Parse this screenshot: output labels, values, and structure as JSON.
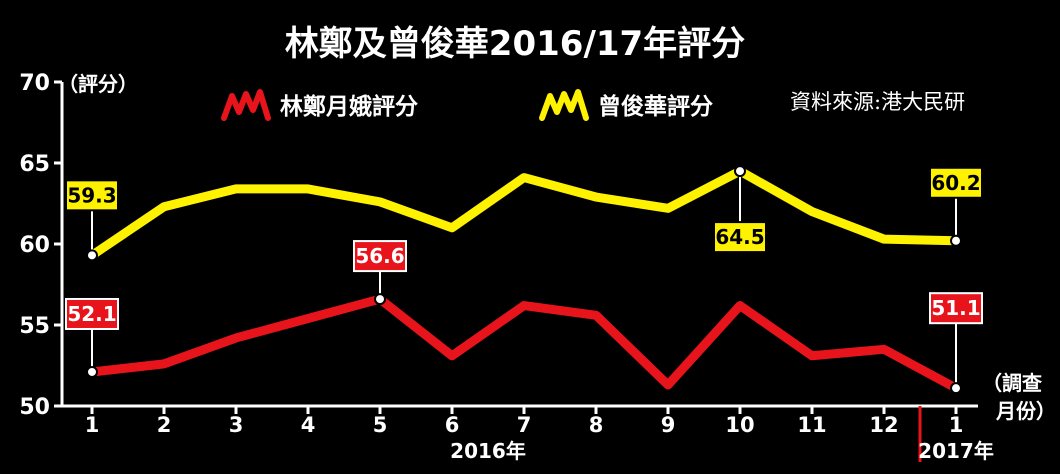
{
  "chart_data": {
    "type": "line",
    "title": "林鄭及曾俊華2016/17年評分",
    "ylabel": "（評分）",
    "xlabel_line1": "（調查",
    "xlabel_line2": "月份）",
    "source": "資料來源:港大民研",
    "ylim": [
      50,
      70
    ],
    "yticks": [
      "70",
      "65",
      "60",
      "55",
      "50"
    ],
    "categories": [
      "1",
      "2",
      "3",
      "4",
      "5",
      "6",
      "7",
      "8",
      "9",
      "10",
      "11",
      "12",
      "1"
    ],
    "year_labels": [
      "2016年",
      "2017年"
    ],
    "grid": false,
    "legend_position": "top",
    "series": [
      {
        "name": "林鄭月娥評分",
        "color": "#e8141c",
        "values": [
          52.1,
          52.6,
          54.2,
          55.4,
          56.6,
          53.1,
          56.2,
          55.6,
          51.3,
          56.2,
          53.1,
          53.5,
          51.1
        ],
        "labels": [
          {
            "index": 0,
            "text": "52.1"
          },
          {
            "index": 4,
            "text": "56.6"
          },
          {
            "index": 12,
            "text": "51.1"
          }
        ]
      },
      {
        "name": "曾俊華評分",
        "color": "#fff200",
        "values": [
          59.3,
          62.3,
          63.4,
          63.4,
          62.6,
          61.0,
          64.1,
          62.9,
          62.2,
          64.5,
          62.0,
          60.3,
          60.2
        ],
        "labels": [
          {
            "index": 0,
            "text": "59.3"
          },
          {
            "index": 9,
            "text": "64.5"
          },
          {
            "index": 12,
            "text": "60.2"
          }
        ]
      }
    ]
  }
}
